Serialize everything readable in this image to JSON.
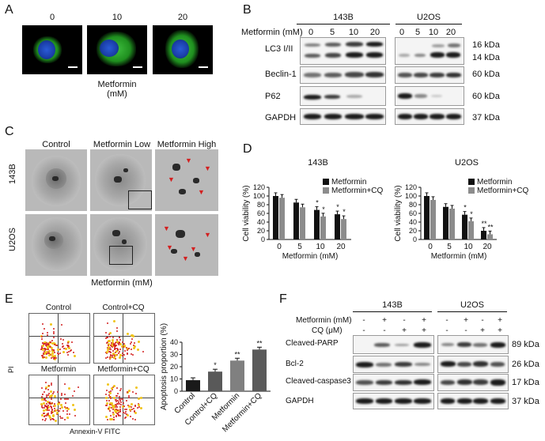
{
  "panels": {
    "a": "A",
    "b": "B",
    "c": "C",
    "d": "D",
    "e": "E",
    "f": "F"
  },
  "panelA": {
    "doses": [
      "0",
      "10",
      "20"
    ],
    "xlabel": "Metformin (mM)"
  },
  "panelB": {
    "header_lines": [
      "143B",
      "U2OS"
    ],
    "dose_label": "Metformin (mM)",
    "doses_143b": [
      "0",
      "5",
      "10",
      "20"
    ],
    "doses_u2os": [
      "0",
      "5",
      "10",
      "20"
    ],
    "rows": [
      {
        "name": "LC3 I/II",
        "kda": [
          "16 kDa",
          "14 kDa"
        ]
      },
      {
        "name": "Beclin-1",
        "kda": [
          "60 kDa"
        ]
      },
      {
        "name": "P62",
        "kda": [
          "60 kDa"
        ]
      },
      {
        "name": "GAPDH",
        "kda": [
          "37 kDa"
        ]
      }
    ]
  },
  "panelC": {
    "cols": [
      "Control",
      "Metformin Low",
      "Metformin High"
    ],
    "rows": [
      "143B",
      "U2OS"
    ],
    "xlabel": "Metformin (mM)"
  },
  "panelE": {
    "quads": [
      "Control",
      "Control+CQ",
      "Metformin",
      "Metformin+CQ"
    ],
    "xaxis": "Annexin-V FITC",
    "yaxis": "PI"
  },
  "panelF": {
    "groups": [
      "143B",
      "U2OS"
    ],
    "cond_labels": [
      "Metformin (mM)",
      "CQ (μM)"
    ],
    "met_signs": [
      "-",
      "+",
      "-",
      "+",
      "-",
      "+",
      "-",
      "+"
    ],
    "cq_signs": [
      "-",
      "-",
      "+",
      "+",
      "-",
      "-",
      "+",
      "+"
    ],
    "rows": [
      {
        "name": "Cleaved-PARP",
        "kda": "89 kDa"
      },
      {
        "name": "Bcl-2",
        "kda": "26 kDa"
      },
      {
        "name": "Cleaved-caspase3",
        "kda": "17 kDa"
      },
      {
        "name": "GAPDH",
        "kda": "37 kDa"
      }
    ]
  },
  "chart_data": [
    {
      "type": "bar",
      "title": "143B",
      "xlabel": "Metformin (mM)",
      "ylabel": "Cell viability (%)",
      "categories": [
        "0",
        "5",
        "10",
        "20"
      ],
      "ylim": [
        0,
        120
      ],
      "yticks": [
        0,
        20,
        40,
        60,
        80,
        100,
        120
      ],
      "legend": "top-right",
      "series": [
        {
          "name": "Metformin",
          "color": "#111111",
          "values": [
            100,
            85,
            68,
            58
          ]
        },
        {
          "name": "Metformin+CQ",
          "color": "#8c8c8c",
          "values": [
            96,
            74,
            53,
            47
          ]
        }
      ],
      "annotations": [
        "",
        "",
        "*",
        "*"
      ],
      "annotations_cq": [
        "",
        "",
        "*",
        "*"
      ]
    },
    {
      "type": "bar",
      "title": "U2OS",
      "xlabel": "Metformin (mM)",
      "ylabel": "Cell viability (%)",
      "categories": [
        "0",
        "5",
        "10",
        "20"
      ],
      "ylim": [
        0,
        120
      ],
      "yticks": [
        0,
        20,
        40,
        60,
        80,
        100,
        120
      ],
      "legend": "top-right",
      "series": [
        {
          "name": "Metformin",
          "color": "#111111",
          "values": [
            100,
            75,
            57,
            20
          ]
        },
        {
          "name": "Metformin+CQ",
          "color": "#8c8c8c",
          "values": [
            91,
            71,
            42,
            12
          ]
        }
      ],
      "annotations": [
        "",
        "",
        "*",
        "**"
      ],
      "annotations_cq": [
        "",
        "",
        "*",
        "**"
      ]
    },
    {
      "type": "bar",
      "title": "",
      "xlabel": "",
      "ylabel": "Apoptosis proportion (%)",
      "categories": [
        "Control",
        "Control+CQ",
        "Metformin",
        "Metformin+CQ"
      ],
      "ylim": [
        0,
        40
      ],
      "yticks": [
        0,
        10,
        20,
        30,
        40
      ],
      "series": [
        {
          "name": "",
          "colors": [
            "#1a1a1a",
            "#595959",
            "#808080",
            "#5a5a5a"
          ],
          "values": [
            9,
            16,
            25,
            34
          ]
        }
      ],
      "annotations": [
        "",
        "*",
        "**",
        "**"
      ]
    }
  ]
}
